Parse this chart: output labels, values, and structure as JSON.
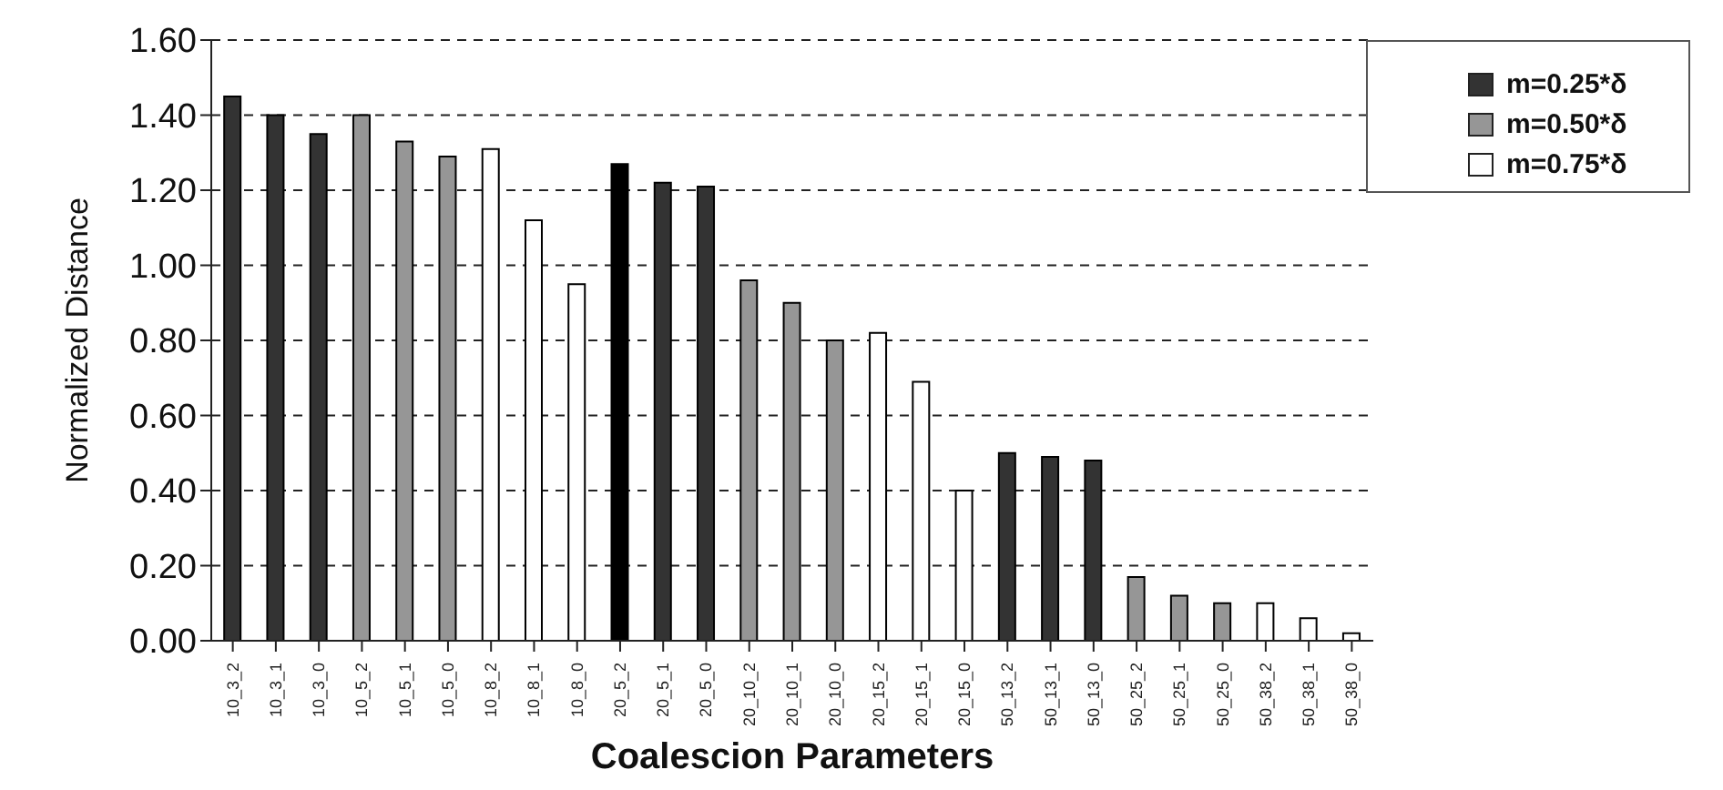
{
  "chart_data": {
    "type": "bar",
    "xlabel": "Coalescion Parameters",
    "ylabel": "Normalized Distance",
    "categories": [
      "10_3_2",
      "10_3_1",
      "10_3_0",
      "10_5_2",
      "10_5_1",
      "10_5_0",
      "10_8_2",
      "10_8_1",
      "10_8_0",
      "20_5_2",
      "20_5_1",
      "20_5_0",
      "20_10_2",
      "20_10_1",
      "20_10_0",
      "20_15_2",
      "20_15_1",
      "20_15_0",
      "50_13_2",
      "50_13_1",
      "50_13_0",
      "50_25_2",
      "50_25_1",
      "50_25_0",
      "50_38_2",
      "50_38_1",
      "50_38_0"
    ],
    "series": [
      {
        "name": "m=0.25*δ",
        "color": "#333333",
        "colors": [
          "#333333",
          "#333333",
          "#333333",
          null,
          null,
          null,
          null,
          null,
          null,
          "#000000",
          "#333333",
          "#333333",
          null,
          null,
          null,
          null,
          null,
          null,
          "#333333",
          "#333333",
          "#333333",
          null,
          null,
          null,
          null,
          null,
          null
        ],
        "values": [
          1.45,
          1.4,
          1.35,
          null,
          null,
          null,
          null,
          null,
          null,
          1.27,
          1.22,
          1.21,
          null,
          null,
          null,
          null,
          null,
          null,
          0.5,
          0.49,
          0.48,
          null,
          null,
          null,
          null,
          null,
          null
        ]
      },
      {
        "name": "m=0.50*δ",
        "color": "#969696",
        "values": [
          null,
          null,
          null,
          1.4,
          1.33,
          1.29,
          null,
          null,
          null,
          null,
          null,
          null,
          0.96,
          0.9,
          0.8,
          null,
          null,
          null,
          null,
          null,
          null,
          0.17,
          0.12,
          0.1,
          null,
          null,
          null
        ]
      },
      {
        "name": "m=0.75*δ",
        "color": "#ffffff",
        "values": [
          null,
          null,
          null,
          null,
          null,
          null,
          1.31,
          1.12,
          0.95,
          null,
          null,
          null,
          null,
          null,
          null,
          0.82,
          0.69,
          0.4,
          null,
          null,
          null,
          null,
          null,
          null,
          0.1,
          0.06,
          0.02
        ]
      }
    ],
    "stacked": true,
    "ylim": [
      0,
      1.6
    ],
    "yticks": [
      {
        "value": 0,
        "label": "0.00"
      },
      {
        "value": 0.2,
        "label": "0.20"
      },
      {
        "value": 0.4,
        "label": "0.40"
      },
      {
        "value": 0.6,
        "label": "0.60"
      },
      {
        "value": 0.8,
        "label": "0.80"
      },
      {
        "value": 1,
        "label": "1.00"
      },
      {
        "value": 1.2,
        "label": "1.20"
      },
      {
        "value": 1.4,
        "label": "1.40"
      },
      {
        "value": 1.6,
        "label": "1.60"
      }
    ],
    "grid": "y",
    "legend": "top right"
  }
}
